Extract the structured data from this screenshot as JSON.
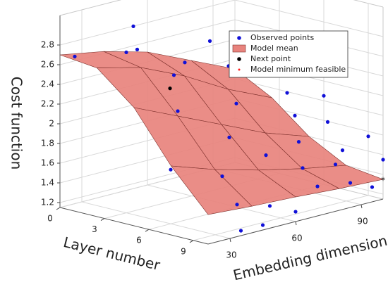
{
  "chart_data": {
    "type": "surface3d",
    "xlabel": "Layer number",
    "ylabel": "Embedding dimension",
    "zlabel": "Cost function",
    "xlim": [
      0,
      10
    ],
    "xticks": [
      0,
      3,
      6,
      9
    ],
    "ylim": [
      20,
      100
    ],
    "yticks": [
      30,
      60,
      90
    ],
    "zlim": [
      1.15,
      3.1
    ],
    "zticks": [
      1.2,
      1.4,
      1.6,
      1.8,
      2,
      2.2,
      2.4,
      2.6,
      2.8
    ],
    "grid": true,
    "legend": "upper right",
    "surface": {
      "name": "Model mean",
      "color": "#e8837d",
      "edgecolor": "#7a2e2a",
      "x": [
        0,
        2.5,
        5,
        7.5,
        10
      ],
      "y": [
        20,
        40,
        60,
        80,
        100
      ],
      "z": [
        [
          2.7,
          2.62,
          2.5,
          2.3,
          2.1
        ],
        [
          2.66,
          2.55,
          2.35,
          2.1,
          1.9
        ],
        [
          2.35,
          2.15,
          1.95,
          1.75,
          1.6
        ],
        [
          1.85,
          1.7,
          1.58,
          1.48,
          1.4
        ],
        [
          1.45,
          1.42,
          1.4,
          1.37,
          1.35
        ]
      ]
    },
    "series": [
      {
        "name": "Observed points",
        "color": "#1010d8",
        "marker": "dot",
        "x": [
          1,
          2,
          3,
          3,
          4,
          4,
          2,
          5,
          6,
          6,
          7,
          8,
          8,
          9,
          10,
          10,
          7,
          8,
          9,
          9,
          10,
          10,
          10,
          8,
          6,
          9,
          10,
          7,
          5,
          4,
          9,
          10
        ],
        "y": [
          20,
          40,
          30,
          35,
          50,
          45,
          75,
          40,
          30,
          60,
          50,
          40,
          60,
          40,
          35,
          45,
          80,
          75,
          70,
          85,
          70,
          85,
          95,
          95,
          100,
          100,
          100,
          95,
          90,
          70,
          55,
          60
        ],
        "z": [
          2.72,
          2.95,
          2.78,
          2.78,
          2.6,
          2.5,
          2.6,
          2.2,
          1.7,
          2.2,
          1.95,
          1.65,
          1.75,
          1.4,
          1.2,
          1.2,
          2.0,
          1.8,
          1.6,
          1.55,
          1.45,
          1.4,
          1.3,
          1.6,
          2.05,
          1.75,
          1.55,
          1.85,
          2.1,
          2.45,
          1.3,
          1.25
        ]
      },
      {
        "name": "Next point",
        "color": "#000000",
        "marker": "dot",
        "x": [
          3
        ],
        "y": [
          50
        ],
        "z": [
          2.3
        ]
      },
      {
        "name": "Model minimum feasible",
        "color": "#ff2020",
        "marker": "star",
        "x": [
          10
        ],
        "y": [
          100
        ],
        "z": [
          1.35
        ]
      }
    ]
  }
}
